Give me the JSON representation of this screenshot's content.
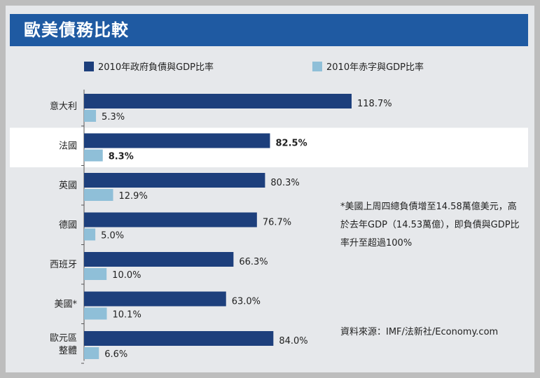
{
  "title": "歐美債務比較",
  "chart_data": {
    "type": "bar",
    "orientation": "horizontal",
    "categories": [
      "意大利",
      "法國",
      "英國",
      "德國",
      "西班牙",
      "美國*",
      "歐元區整體"
    ],
    "highlighted_category": "法國",
    "series": [
      {
        "name": "2010年政府負債與GDP比率",
        "color": "#1d3f7c",
        "values": [
          118.7,
          82.5,
          80.3,
          76.7,
          66.3,
          63.0,
          84.0
        ],
        "labels": [
          "118.7%",
          "82.5%",
          "80.3%",
          "76.7%",
          "66.3%",
          "63.0%",
          "84.0%"
        ]
      },
      {
        "name": "2010年赤字與GDP比率",
        "color": "#8fbfd8",
        "values": [
          5.3,
          8.3,
          12.9,
          5.0,
          10.0,
          10.1,
          6.6
        ],
        "labels": [
          "5.3%",
          "8.3%",
          "12.9%",
          "5.0%",
          "10.0%",
          "10.1%",
          "6.6%"
        ]
      }
    ],
    "legend_position": "top",
    "grid": false
  },
  "note": "*美國上周四總負債增至14.58萬億美元，高於去年GDP（14.53萬億），即負債與GDP比率升至超過100%",
  "source": "資料來源：IMF/法新社/Economy.com"
}
